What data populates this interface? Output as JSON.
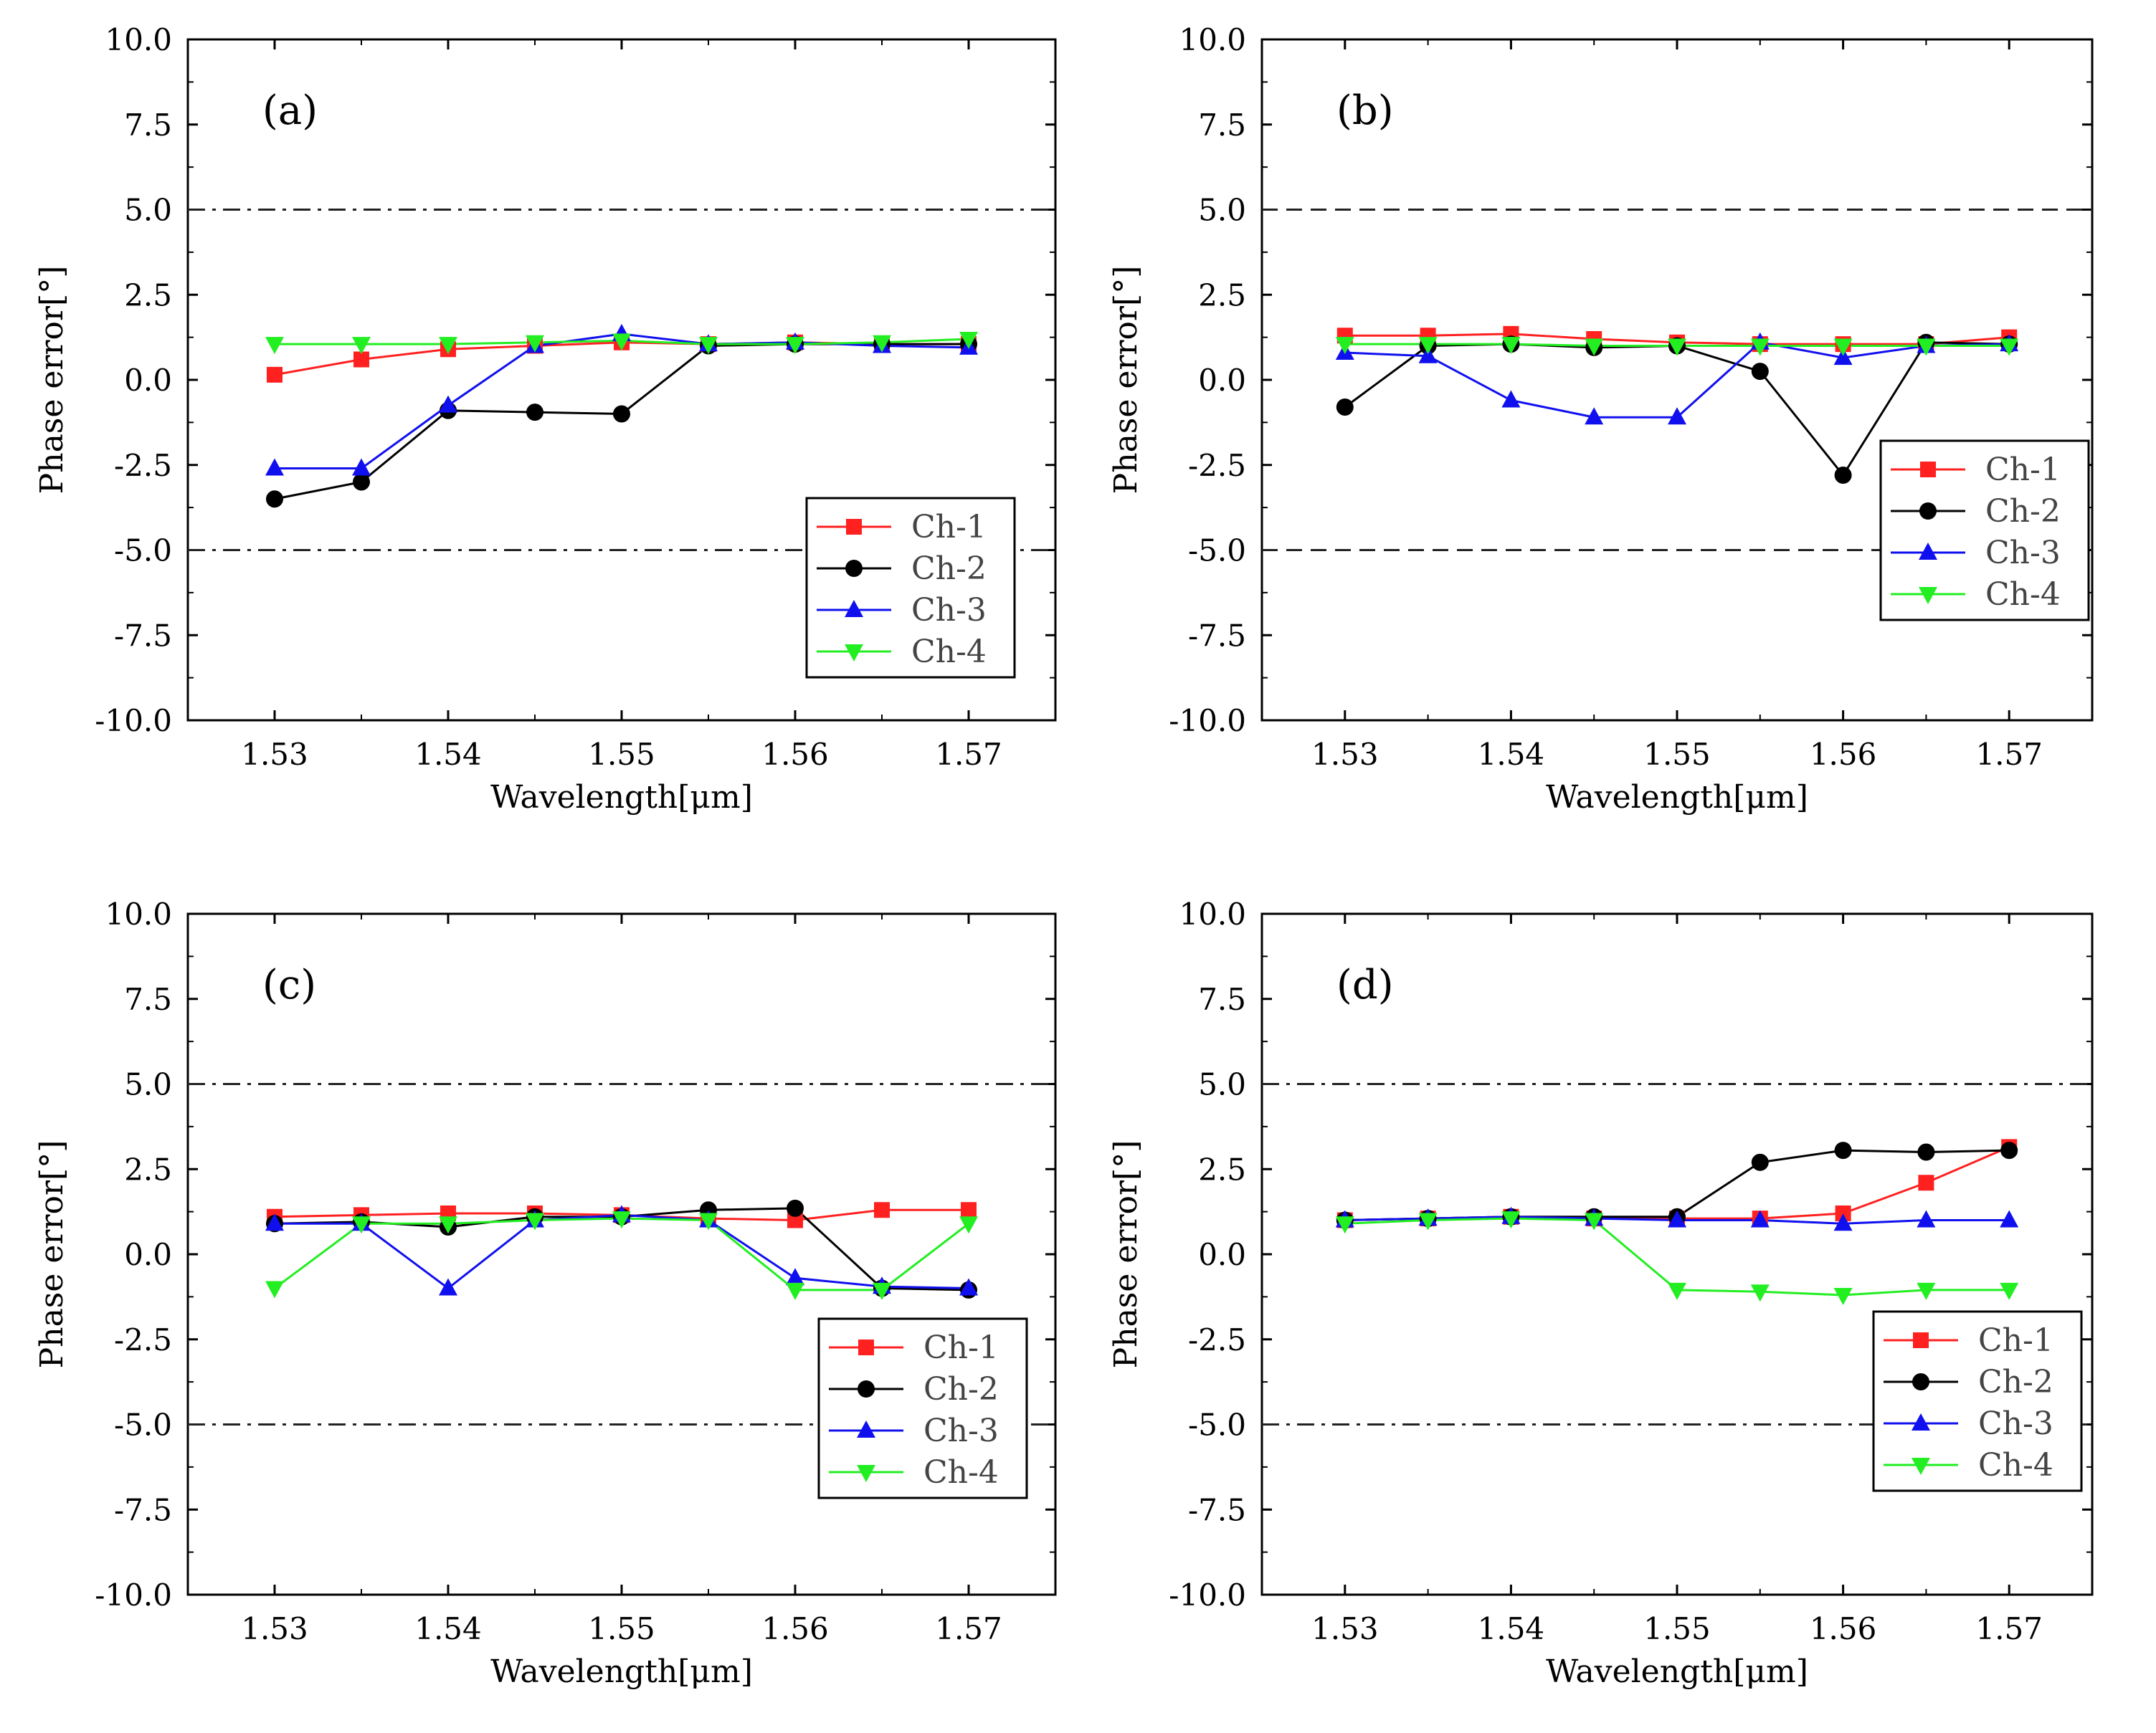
{
  "colors": {
    "Ch-1": "#ff2020",
    "Ch-2": "#000000",
    "Ch-3": "#1010ee",
    "Ch-4": "#22ee22",
    "axis": "#000000",
    "reference": "#222222"
  },
  "chart_data": [
    {
      "type": "line",
      "panel_label": "(a)",
      "xlabel": "Wavelength[μm]",
      "ylabel": "Phase error[°]",
      "xlim": [
        1.525,
        1.575
      ],
      "ylim": [
        -10,
        10
      ],
      "xticks": [
        "1.53",
        "1.54",
        "1.55",
        "1.56",
        "1.57"
      ],
      "yticks": [
        "10.0",
        "7.5",
        "5.0",
        "2.5",
        "0.0",
        "-2.5",
        "-5.0",
        "-7.5",
        "-10.0"
      ],
      "reference_lines": [
        5,
        -5
      ],
      "reference_style": "dash-dot",
      "legend_position": "lower-right",
      "x": [
        1.53,
        1.535,
        1.54,
        1.545,
        1.55,
        1.555,
        1.56,
        1.565,
        1.57
      ],
      "series": [
        {
          "name": "Ch-1",
          "marker": "square",
          "values": [
            0.15,
            0.6,
            0.9,
            1.0,
            1.1,
            1.05,
            1.1,
            1.05,
            1.05
          ]
        },
        {
          "name": "Ch-2",
          "marker": "circle",
          "values": [
            -3.5,
            -3.0,
            -0.9,
            -0.95,
            -1.0,
            1.0,
            1.05,
            1.05,
            1.05
          ]
        },
        {
          "name": "Ch-3",
          "marker": "triangle-up",
          "values": [
            -2.6,
            -2.6,
            -0.75,
            1.0,
            1.35,
            1.05,
            1.1,
            1.0,
            0.95
          ]
        },
        {
          "name": "Ch-4",
          "marker": "triangle-down",
          "values": [
            1.05,
            1.05,
            1.05,
            1.1,
            1.15,
            1.05,
            1.05,
            1.1,
            1.2
          ]
        }
      ]
    },
    {
      "type": "line",
      "panel_label": "(b)",
      "xlabel": "Wavelength[μm]",
      "ylabel": "Phase error[°]",
      "xlim": [
        1.525,
        1.575
      ],
      "ylim": [
        -10,
        10
      ],
      "xticks": [
        "1.53",
        "1.54",
        "1.55",
        "1.56",
        "1.57"
      ],
      "yticks": [
        "10.0",
        "7.5",
        "5.0",
        "2.5",
        "0.0",
        "-2.5",
        "-5.0",
        "-7.5",
        "-10.0"
      ],
      "reference_lines": [
        5,
        -5
      ],
      "reference_style": "dashed",
      "legend_position": "lower-right",
      "x": [
        1.53,
        1.535,
        1.54,
        1.545,
        1.55,
        1.555,
        1.56,
        1.565,
        1.57
      ],
      "series": [
        {
          "name": "Ch-1",
          "marker": "square",
          "values": [
            1.3,
            1.3,
            1.35,
            1.2,
            1.1,
            1.05,
            1.05,
            1.05,
            1.25
          ]
        },
        {
          "name": "Ch-2",
          "marker": "circle",
          "values": [
            -0.8,
            1.0,
            1.05,
            0.95,
            1.0,
            0.25,
            -2.8,
            1.1,
            1.05
          ]
        },
        {
          "name": "Ch-3",
          "marker": "triangle-up",
          "values": [
            0.8,
            0.7,
            -0.6,
            -1.1,
            -1.1,
            1.1,
            0.65,
            1.0,
            1.05
          ]
        },
        {
          "name": "Ch-4",
          "marker": "triangle-down",
          "values": [
            1.05,
            1.05,
            1.05,
            1.0,
            1.0,
            1.0,
            1.0,
            1.0,
            1.0
          ]
        }
      ]
    },
    {
      "type": "line",
      "panel_label": "(c)",
      "xlabel": "Wavelength[μm]",
      "ylabel": "Phase error[°]",
      "xlim": [
        1.525,
        1.575
      ],
      "ylim": [
        -10,
        10
      ],
      "xticks": [
        "1.53",
        "1.54",
        "1.55",
        "1.56",
        "1.57"
      ],
      "yticks": [
        "10.0",
        "7.5",
        "5.0",
        "2.5",
        "0.0",
        "-2.5",
        "-5.0",
        "-7.5",
        "-10.0"
      ],
      "reference_lines": [
        5,
        -5
      ],
      "reference_style": "dash-dot",
      "legend_position": "lower-right",
      "x": [
        1.53,
        1.535,
        1.54,
        1.545,
        1.55,
        1.555,
        1.56,
        1.565,
        1.57
      ],
      "series": [
        {
          "name": "Ch-1",
          "marker": "square",
          "values": [
            1.1,
            1.15,
            1.2,
            1.2,
            1.15,
            1.05,
            1.0,
            1.3,
            1.3
          ]
        },
        {
          "name": "Ch-2",
          "marker": "circle",
          "values": [
            0.9,
            0.95,
            0.8,
            1.1,
            1.1,
            1.3,
            1.35,
            -1.0,
            -1.05
          ]
        },
        {
          "name": "Ch-3",
          "marker": "triangle-up",
          "values": [
            0.9,
            0.9,
            -1.0,
            1.0,
            1.15,
            1.0,
            -0.7,
            -0.95,
            -1.0
          ]
        },
        {
          "name": "Ch-4",
          "marker": "triangle-down",
          "values": [
            -1.0,
            0.9,
            0.9,
            1.0,
            1.05,
            1.0,
            -1.05,
            -1.05,
            0.9
          ]
        }
      ]
    },
    {
      "type": "line",
      "panel_label": "(d)",
      "xlabel": "Wavelength[μm]",
      "ylabel": "Phase error[°]",
      "xlim": [
        1.525,
        1.575
      ],
      "ylim": [
        -10,
        10
      ],
      "xticks": [
        "1.53",
        "1.54",
        "1.55",
        "1.56",
        "1.57"
      ],
      "yticks": [
        "10.0",
        "7.5",
        "5.0",
        "2.5",
        "0.0",
        "-2.5",
        "-5.0",
        "-7.5",
        "-10.0"
      ],
      "reference_lines": [
        5,
        -5
      ],
      "reference_style": "dash-dot",
      "legend_position": "lower-right",
      "x": [
        1.53,
        1.535,
        1.54,
        1.545,
        1.55,
        1.555,
        1.56,
        1.565,
        1.57
      ],
      "series": [
        {
          "name": "Ch-1",
          "marker": "square",
          "values": [
            1.0,
            1.05,
            1.1,
            1.05,
            1.05,
            1.05,
            1.2,
            2.1,
            3.15
          ]
        },
        {
          "name": "Ch-2",
          "marker": "circle",
          "values": [
            1.0,
            1.05,
            1.1,
            1.1,
            1.1,
            2.7,
            3.05,
            3.0,
            3.05
          ]
        },
        {
          "name": "Ch-3",
          "marker": "triangle-up",
          "values": [
            1.0,
            1.05,
            1.1,
            1.05,
            1.0,
            1.0,
            0.9,
            1.0,
            1.0
          ]
        },
        {
          "name": "Ch-4",
          "marker": "triangle-down",
          "values": [
            0.9,
            1.0,
            1.05,
            1.0,
            -1.05,
            -1.1,
            -1.2,
            -1.05,
            -1.05
          ]
        }
      ]
    }
  ]
}
